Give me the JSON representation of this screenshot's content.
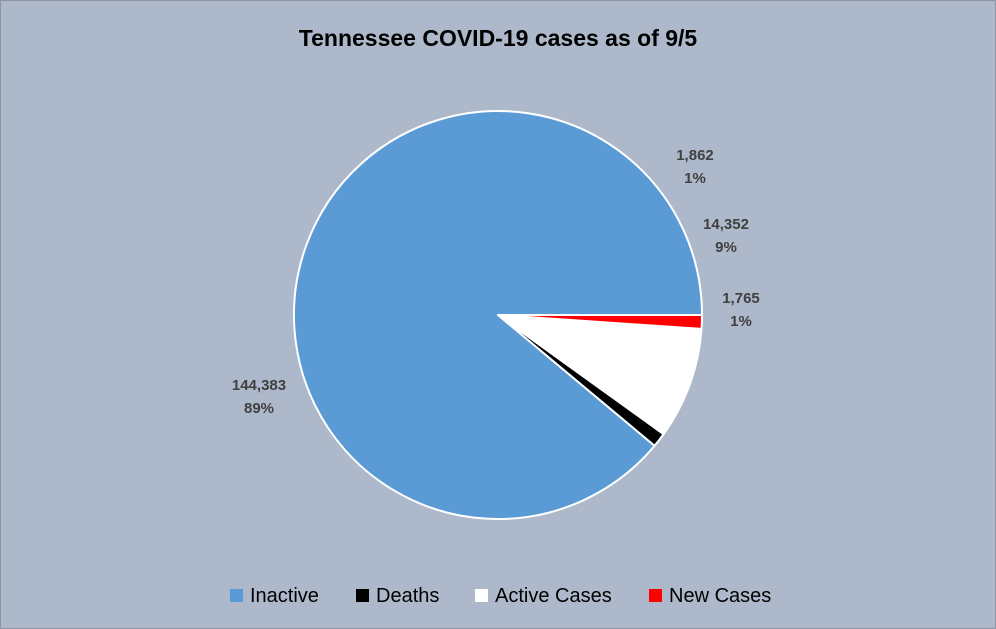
{
  "chart_data": {
    "type": "pie",
    "title": "Tennessee COVID-19 cases as of 9/5",
    "start_angle_deg": 90,
    "direction": "counterclockwise",
    "legend_position": "bottom",
    "background_color": "#adb9ca",
    "slice_border_color": "#ffffff",
    "slices": [
      {
        "name": "Inactive",
        "value": 144383,
        "value_label": "144,383",
        "percent_label": "89%",
        "color": "#5b9bd5"
      },
      {
        "name": "Deaths",
        "value": 1862,
        "value_label": "1,862",
        "percent_label": "1%",
        "color": "#000000"
      },
      {
        "name": "Active Cases",
        "value": 14352,
        "value_label": "14,352",
        "percent_label": "9%",
        "color": "#ffffff"
      },
      {
        "name": "New Cases",
        "value": 1765,
        "value_label": "1,765",
        "percent_label": "1%",
        "color": "#ff0000"
      }
    ]
  }
}
